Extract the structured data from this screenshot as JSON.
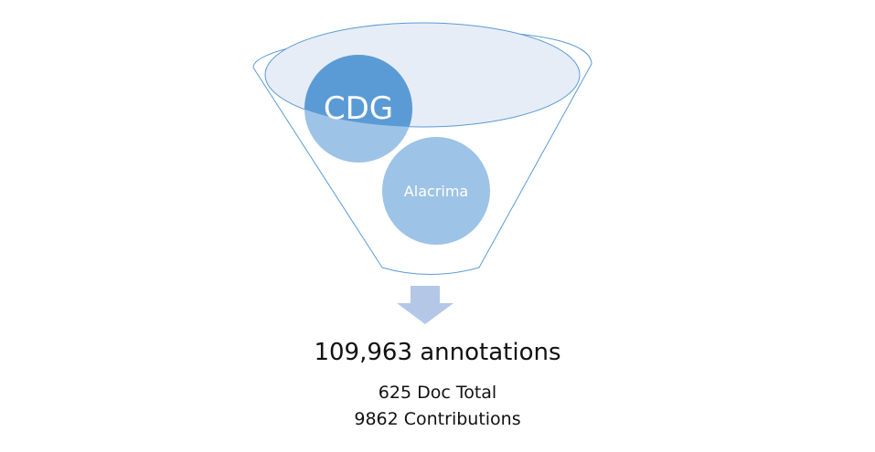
{
  "diagram": {
    "sources": [
      {
        "label": "CDG"
      },
      {
        "label": "Alacrima"
      }
    ],
    "result": {
      "headline": "109,963 annotations",
      "doc_total": "625 Doc Total",
      "contributions": "9862 Contributions"
    }
  },
  "colors": {
    "funnel_stroke": "#5b9bd5",
    "funnel_mouth_fill": "#e6edf7",
    "cdg_fill": "#5b9bd5",
    "cdg_lower_fill": "#9dc3e6",
    "alacrima_fill": "#9dc3e6",
    "arrow_fill": "#b4c7e7",
    "node_text": "#ffffff"
  }
}
